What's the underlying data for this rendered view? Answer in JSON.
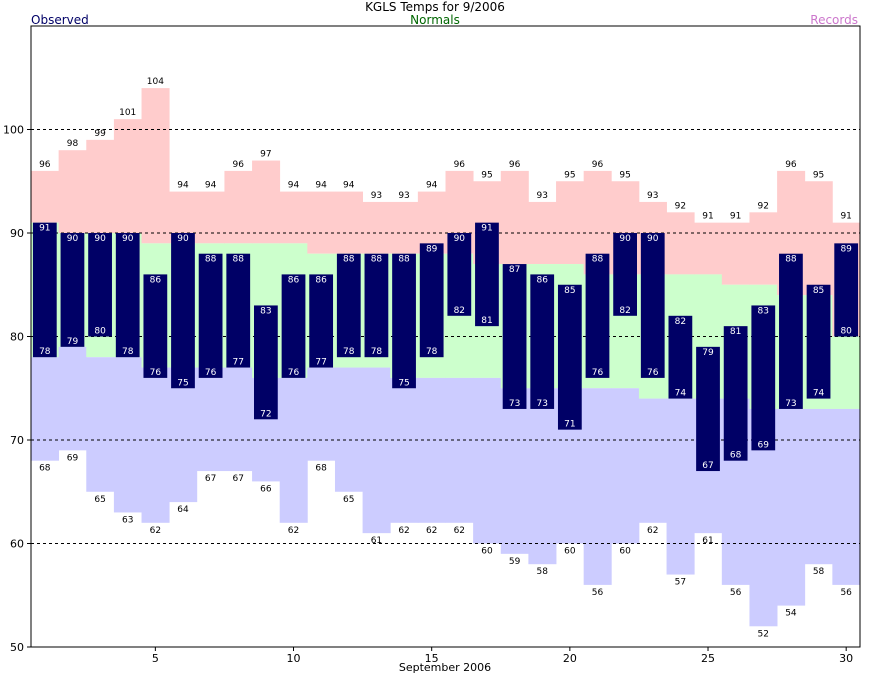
{
  "chart_data": {
    "type": "bar",
    "title": "KGLS Temps for 9/2006",
    "xlabel": "September 2006",
    "ylabel": "",
    "ylim": [
      50,
      110
    ],
    "xlim": [
      0.5,
      30.5
    ],
    "x_ticks": [
      5,
      10,
      15,
      20,
      25,
      30
    ],
    "y_ticks": [
      50,
      60,
      70,
      80,
      90,
      100
    ],
    "dashed_gridlines": [
      60,
      70,
      80,
      90,
      100
    ],
    "legend": {
      "observed": "Observed",
      "normals": "Normals",
      "records": "Records"
    },
    "days": [
      1,
      2,
      3,
      4,
      5,
      6,
      7,
      8,
      9,
      10,
      11,
      12,
      13,
      14,
      15,
      16,
      17,
      18,
      19,
      20,
      21,
      22,
      23,
      24,
      25,
      26,
      27,
      28,
      29,
      30
    ],
    "series": [
      {
        "name": "Records",
        "key": "record_high",
        "values": [
          96,
          98,
          99,
          101,
          104,
          94,
          94,
          96,
          97,
          94,
          94,
          94,
          93,
          93,
          94,
          96,
          95,
          96,
          93,
          95,
          96,
          95,
          93,
          92,
          91,
          91,
          92,
          96,
          95,
          91
        ]
      },
      {
        "name": "Records",
        "key": "record_low",
        "values": [
          68,
          69,
          65,
          63,
          62,
          64,
          67,
          67,
          66,
          62,
          68,
          65,
          61,
          62,
          62,
          62,
          60,
          59,
          58,
          60,
          56,
          60,
          62,
          57,
          61,
          56,
          52,
          54,
          58,
          56
        ]
      },
      {
        "name": "Normals",
        "key": "normal_high",
        "values": [
          91,
          90,
          90,
          90,
          89,
          89,
          89,
          89,
          89,
          89,
          88,
          88,
          88,
          88,
          88,
          88,
          87,
          87,
          87,
          87,
          86,
          86,
          86,
          86,
          86,
          85,
          85,
          84,
          84,
          80
        ]
      },
      {
        "name": "Normals",
        "key": "normal_low",
        "values": [
          78,
          79,
          78,
          78,
          77,
          77,
          77,
          77,
          76,
          76,
          77,
          77,
          77,
          76,
          76,
          76,
          76,
          75,
          75,
          75,
          75,
          75,
          74,
          74,
          74,
          74,
          73,
          73,
          73,
          73
        ]
      },
      {
        "name": "Observed",
        "key": "observed_high",
        "values": [
          91,
          90,
          90,
          90,
          86,
          90,
          88,
          88,
          83,
          86,
          86,
          88,
          88,
          88,
          89,
          90,
          91,
          87,
          86,
          85,
          88,
          90,
          90,
          82,
          79,
          81,
          83,
          88,
          85,
          89
        ]
      },
      {
        "name": "Observed",
        "key": "observed_low",
        "values": [
          78,
          79,
          80,
          78,
          76,
          75,
          76,
          77,
          72,
          76,
          77,
          78,
          78,
          75,
          78,
          82,
          81,
          73,
          73,
          71,
          76,
          82,
          76,
          74,
          67,
          68,
          69,
          73,
          74,
          80
        ]
      }
    ],
    "colors": {
      "observed": "#000066",
      "observed_label": "#ffffff",
      "normal_band": "#ccffcc",
      "record_high_band": "#ffcccc",
      "record_low_band": "#ccccff",
      "title": "#000000",
      "observed_legend": "#000066",
      "normals_legend": "#006600",
      "records_legend": "#cc77cc",
      "grid": "#000000"
    }
  }
}
